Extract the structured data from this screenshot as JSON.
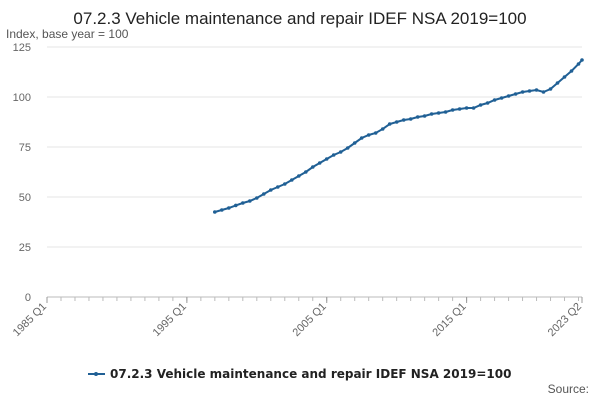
{
  "chart_data": {
    "type": "line",
    "title": "07.2.3 Vehicle maintenance and repair IDEF NSA 2019=100",
    "subtitle": "Index, base year = 100",
    "xlabel": "",
    "ylabel": "",
    "x_range": [
      "1985 Q1",
      "2023 Q2"
    ],
    "x_ticks": [
      "1985 Q1",
      "1995 Q1",
      "2005 Q1",
      "2015 Q1",
      "2023 Q2"
    ],
    "ylim": [
      0,
      125
    ],
    "y_ticks": [
      0,
      25,
      50,
      75,
      100,
      125
    ],
    "grid": "horizontal",
    "legend_position": "bottom",
    "series": [
      {
        "name": "07.2.3 Vehicle maintenance and repair IDEF NSA 2019=100",
        "color": "#206095",
        "points": [
          [
            "1997 Q1",
            42.5
          ],
          [
            "1997 Q3",
            43.5
          ],
          [
            "1998 Q1",
            44.5
          ],
          [
            "1998 Q3",
            45.8
          ],
          [
            "1999 Q1",
            47.0
          ],
          [
            "1999 Q3",
            48.0
          ],
          [
            "2000 Q1",
            49.5
          ],
          [
            "2000 Q3",
            51.5
          ],
          [
            "2001 Q1",
            53.5
          ],
          [
            "2001 Q3",
            55.0
          ],
          [
            "2002 Q1",
            56.5
          ],
          [
            "2002 Q3",
            58.5
          ],
          [
            "2003 Q1",
            60.5
          ],
          [
            "2003 Q3",
            62.5
          ],
          [
            "2004 Q1",
            65.0
          ],
          [
            "2004 Q3",
            67.0
          ],
          [
            "2005 Q1",
            69.0
          ],
          [
            "2005 Q3",
            71.0
          ],
          [
            "2006 Q1",
            72.5
          ],
          [
            "2006 Q3",
            74.5
          ],
          [
            "2007 Q1",
            77.0
          ],
          [
            "2007 Q3",
            79.5
          ],
          [
            "2008 Q1",
            81.0
          ],
          [
            "2008 Q3",
            82.0
          ],
          [
            "2009 Q1",
            84.0
          ],
          [
            "2009 Q3",
            86.5
          ],
          [
            "2010 Q1",
            87.5
          ],
          [
            "2010 Q3",
            88.5
          ],
          [
            "2011 Q1",
            89.0
          ],
          [
            "2011 Q3",
            90.0
          ],
          [
            "2012 Q1",
            90.5
          ],
          [
            "2012 Q3",
            91.5
          ],
          [
            "2013 Q1",
            92.0
          ],
          [
            "2013 Q3",
            92.5
          ],
          [
            "2014 Q1",
            93.5
          ],
          [
            "2014 Q3",
            94.0
          ],
          [
            "2015 Q1",
            94.5
          ],
          [
            "2015 Q3",
            94.5
          ],
          [
            "2016 Q1",
            96.0
          ],
          [
            "2016 Q3",
            97.0
          ],
          [
            "2017 Q1",
            98.5
          ],
          [
            "2017 Q3",
            99.5
          ],
          [
            "2018 Q1",
            100.5
          ],
          [
            "2018 Q3",
            101.5
          ],
          [
            "2019 Q1",
            102.5
          ],
          [
            "2019 Q3",
            103.0
          ],
          [
            "2020 Q1",
            103.5
          ],
          [
            "2020 Q3",
            102.5
          ],
          [
            "2021 Q1",
            104.0
          ],
          [
            "2021 Q3",
            107.0
          ],
          [
            "2022 Q1",
            110.0
          ],
          [
            "2022 Q3",
            113.0
          ],
          [
            "2023 Q1",
            116.5
          ],
          [
            "2023 Q2",
            118.5
          ]
        ]
      }
    ],
    "source_label": "Source:"
  }
}
